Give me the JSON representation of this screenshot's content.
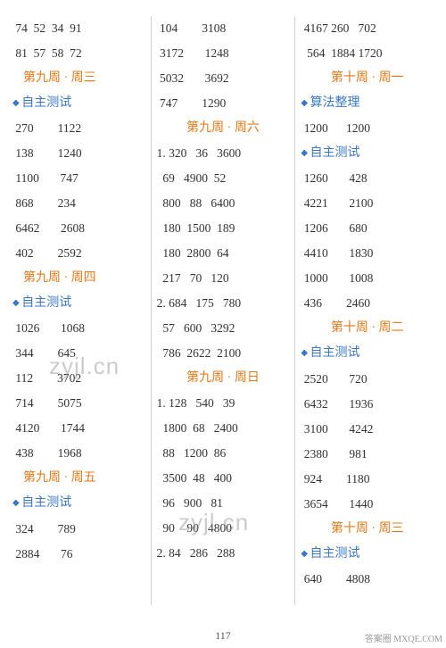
{
  "col1": [
    {
      "type": "row",
      "text": " 74  52  34  91"
    },
    {
      "type": "row",
      "text": " 81  57  58  72"
    },
    {
      "type": "orange-left",
      "text": "第九周 · 周三"
    },
    {
      "type": "blue",
      "text": "自主测试"
    },
    {
      "type": "row",
      "text": " 270        1122"
    },
    {
      "type": "row",
      "text": " 138        1240"
    },
    {
      "type": "row",
      "text": " 1100       747"
    },
    {
      "type": "row",
      "text": " 868        234"
    },
    {
      "type": "row",
      "text": " 6462       2608"
    },
    {
      "type": "row",
      "text": " 402        2592"
    },
    {
      "type": "orange-left",
      "text": "第九周 · 周四"
    },
    {
      "type": "blue",
      "text": "自主测试"
    },
    {
      "type": "row",
      "text": " 1026       1068"
    },
    {
      "type": "row",
      "text": " 344        645"
    },
    {
      "type": "row",
      "text": " 112        3702"
    },
    {
      "type": "row",
      "text": " 714        5075"
    },
    {
      "type": "row",
      "text": " 4120       1744"
    },
    {
      "type": "row",
      "text": " 438        1968"
    },
    {
      "type": "orange-left",
      "text": "第九周 · 周五"
    },
    {
      "type": "blue",
      "text": "自主测试"
    },
    {
      "type": "row",
      "text": " 324        789"
    },
    {
      "type": "row",
      "text": " 2884       76"
    }
  ],
  "col2": [
    {
      "type": "row",
      "text": " 104        3108"
    },
    {
      "type": "row",
      "text": " 3172       1248"
    },
    {
      "type": "row",
      "text": " 5032       3692"
    },
    {
      "type": "row",
      "text": " 747        1290"
    },
    {
      "type": "orange",
      "text": "第九周 · 周六"
    },
    {
      "type": "row",
      "text": "1. 320   36   3600"
    },
    {
      "type": "row",
      "text": "  69   4900  52"
    },
    {
      "type": "row",
      "text": "  800   88   6400"
    },
    {
      "type": "row",
      "text": "  180  1500  189"
    },
    {
      "type": "row",
      "text": "  180  2800  64"
    },
    {
      "type": "row",
      "text": "  217   70   120"
    },
    {
      "type": "row",
      "text": "2. 684   175   780"
    },
    {
      "type": "row",
      "text": "  57   600   3292"
    },
    {
      "type": "row",
      "text": "  786  2622  2100"
    },
    {
      "type": "orange",
      "text": "第九周 · 周日"
    },
    {
      "type": "row",
      "text": "1. 128   540   39"
    },
    {
      "type": "row",
      "text": "  1800  68   2400"
    },
    {
      "type": "row",
      "text": "  88   1200  86"
    },
    {
      "type": "row",
      "text": "  3500  48   400"
    },
    {
      "type": "row",
      "text": "  96   900   81"
    },
    {
      "type": "row",
      "text": "  90    90   4800"
    },
    {
      "type": "row",
      "text": "2. 84   286   288"
    }
  ],
  "col3": [
    {
      "type": "row",
      "text": " 4167 260   702"
    },
    {
      "type": "row",
      "text": "  564  1884 1720"
    },
    {
      "type": "orange",
      "text": "第十周 · 周一"
    },
    {
      "type": "blue",
      "text": "算法整理"
    },
    {
      "type": "row",
      "text": " 1200      1200"
    },
    {
      "type": "blue",
      "text": "自主测试"
    },
    {
      "type": "row",
      "text": " 1260       428"
    },
    {
      "type": "row",
      "text": " 4221       2100"
    },
    {
      "type": "row",
      "text": " 1206       680"
    },
    {
      "type": "row",
      "text": " 4410       1830"
    },
    {
      "type": "row",
      "text": " 1000       1008"
    },
    {
      "type": "row",
      "text": " 436        2460"
    },
    {
      "type": "orange",
      "text": "第十周 · 周二"
    },
    {
      "type": "blue",
      "text": "自主测试"
    },
    {
      "type": "row",
      "text": " 2520       720"
    },
    {
      "type": "row",
      "text": " 6432       1936"
    },
    {
      "type": "row",
      "text": " 3100       4242"
    },
    {
      "type": "row",
      "text": " 2380       981"
    },
    {
      "type": "row",
      "text": " 924        1180"
    },
    {
      "type": "row",
      "text": " 3654       1440"
    },
    {
      "type": "orange",
      "text": "第十周 · 周三"
    },
    {
      "type": "blue",
      "text": "自主测试"
    },
    {
      "type": "row",
      "text": " 640        4808"
    }
  ],
  "pageNum": "117",
  "watermarkText": "zyjl.cn",
  "footerText": "答案圈\nMXQE.COM"
}
